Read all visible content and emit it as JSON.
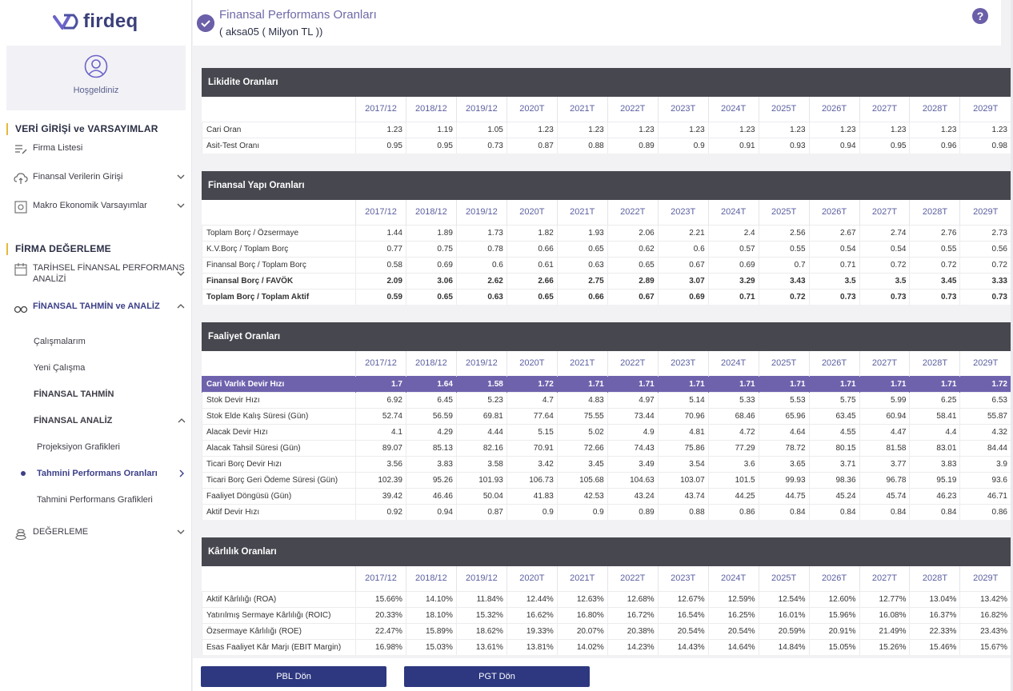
{
  "brand": {
    "name": "firdeq",
    "color": "#3b3f7a"
  },
  "sidebar": {
    "welcome": "Hoşgeldiniz",
    "section1": "VERİ GİRİŞİ ve VARSAYIMLAR",
    "firma_listesi": "Firma Listesi",
    "finansal_verilerin_girisi": "Finansal Verilerin Girişi",
    "makro": "Makro Ekonomik Varsayımlar",
    "section2": "FİRMA DEĞERLEME",
    "tarihsel": "TARİHSEL FİNANSAL PERFORMANS ANALİZİ",
    "tahmin_analiz": "FİNANSAL TAHMİN ve ANALİZ",
    "calismalarim": "Çalışmalarım",
    "yeni_calisma": "Yeni Çalışma",
    "finansal_tahmin": "FİNANSAL TAHMİN",
    "finansal_analiz": "FİNANSAL ANALİZ",
    "projeksiyon": "Projeksiyon Grafikleri",
    "tahmini_oranlar": "Tahmini Performans Oranları",
    "tahmini_grafikler": "Tahmini Performans Grafikleri",
    "degerleme": "DEĞERLEME"
  },
  "header": {
    "title": "Finansal Performans Oranları",
    "subtitle": "( aksa05 ( Milyon TL ))",
    "help": "?"
  },
  "years": [
    "2017/12",
    "2018/12",
    "2019/12",
    "2020T",
    "2021T",
    "2022T",
    "2023T",
    "2024T",
    "2025T",
    "2026T",
    "2027T",
    "2028T",
    "2029T"
  ],
  "panels": [
    {
      "title": "Likidite Oranları",
      "rows": [
        {
          "label": "Cari Oran",
          "v": [
            "1.23",
            "1.19",
            "1.05",
            "1.23",
            "1.23",
            "1.23",
            "1.23",
            "1.23",
            "1.23",
            "1.23",
            "1.23",
            "1.23",
            "1.23"
          ]
        },
        {
          "label": "Asit-Test Oranı",
          "v": [
            "0.95",
            "0.95",
            "0.73",
            "0.87",
            "0.88",
            "0.89",
            "0.9",
            "0.91",
            "0.93",
            "0.94",
            "0.95",
            "0.96",
            "0.98"
          ]
        }
      ]
    },
    {
      "title": "Finansal Yapı Oranları",
      "rows": [
        {
          "label": "Toplam Borç / Özsermaye",
          "v": [
            "1.44",
            "1.89",
            "1.73",
            "1.82",
            "1.93",
            "2.06",
            "2.21",
            "2.4",
            "2.56",
            "2.67",
            "2.74",
            "2.76",
            "2.73"
          ]
        },
        {
          "label": "K.V.Borç / Toplam Borç",
          "v": [
            "0.77",
            "0.75",
            "0.78",
            "0.66",
            "0.65",
            "0.62",
            "0.6",
            "0.57",
            "0.55",
            "0.54",
            "0.54",
            "0.55",
            "0.56"
          ]
        },
        {
          "label": "Finansal Borç / Toplam Borç",
          "v": [
            "0.58",
            "0.69",
            "0.6",
            "0.61",
            "0.63",
            "0.65",
            "0.67",
            "0.69",
            "0.7",
            "0.71",
            "0.72",
            "0.72",
            "0.72"
          ]
        },
        {
          "label": "Finansal Borç / FAVÖK",
          "bold": true,
          "v": [
            "2.09",
            "3.06",
            "2.62",
            "2.66",
            "2.75",
            "2.89",
            "3.07",
            "3.29",
            "3.43",
            "3.5",
            "3.5",
            "3.45",
            "3.33"
          ]
        },
        {
          "label": "Toplam Borç / Toplam Aktif",
          "bold": true,
          "v": [
            "0.59",
            "0.65",
            "0.63",
            "0.65",
            "0.66",
            "0.67",
            "0.69",
            "0.71",
            "0.72",
            "0.73",
            "0.73",
            "0.73",
            "0.73"
          ]
        }
      ]
    },
    {
      "title": "Faaliyet Oranları",
      "rows": [
        {
          "label": "Cari Varlık Devir Hızı",
          "highlight": true,
          "v": [
            "1.7",
            "1.64",
            "1.58",
            "1.72",
            "1.71",
            "1.71",
            "1.71",
            "1.71",
            "1.71",
            "1.71",
            "1.71",
            "1.71",
            "1.72"
          ]
        },
        {
          "label": "Stok Devir Hızı",
          "v": [
            "6.92",
            "6.45",
            "5.23",
            "4.7",
            "4.83",
            "4.97",
            "5.14",
            "5.33",
            "5.53",
            "5.75",
            "5.99",
            "6.25",
            "6.53"
          ]
        },
        {
          "label": "Stok Elde Kalış Süresi (Gün)",
          "v": [
            "52.74",
            "56.59",
            "69.81",
            "77.64",
            "75.55",
            "73.44",
            "70.96",
            "68.46",
            "65.96",
            "63.45",
            "60.94",
            "58.41",
            "55.87"
          ]
        },
        {
          "label": "Alacak Devir Hızı",
          "v": [
            "4.1",
            "4.29",
            "4.44",
            "5.15",
            "5.02",
            "4.9",
            "4.81",
            "4.72",
            "4.64",
            "4.55",
            "4.47",
            "4.4",
            "4.32"
          ]
        },
        {
          "label": "Alacak Tahsil Süresi (Gün)",
          "v": [
            "89.07",
            "85.13",
            "82.16",
            "70.91",
            "72.66",
            "74.43",
            "75.86",
            "77.29",
            "78.72",
            "80.15",
            "81.58",
            "83.01",
            "84.44"
          ]
        },
        {
          "label": "Ticari Borç Devir Hızı",
          "v": [
            "3.56",
            "3.83",
            "3.58",
            "3.42",
            "3.45",
            "3.49",
            "3.54",
            "3.6",
            "3.65",
            "3.71",
            "3.77",
            "3.83",
            "3.9"
          ]
        },
        {
          "label": "Ticari Borç Geri Ödeme Süresi (Gün)",
          "v": [
            "102.39",
            "95.26",
            "101.93",
            "106.73",
            "105.68",
            "104.63",
            "103.07",
            "101.5",
            "99.93",
            "98.36",
            "96.78",
            "95.19",
            "93.6"
          ]
        },
        {
          "label": "Faaliyet Döngüsü (Gün)",
          "v": [
            "39.42",
            "46.46",
            "50.04",
            "41.83",
            "42.53",
            "43.24",
            "43.74",
            "44.25",
            "44.75",
            "45.24",
            "45.74",
            "46.23",
            "46.71"
          ]
        },
        {
          "label": "Aktif Devir Hızı",
          "v": [
            "0.92",
            "0.94",
            "0.87",
            "0.9",
            "0.9",
            "0.89",
            "0.88",
            "0.86",
            "0.84",
            "0.84",
            "0.84",
            "0.84",
            "0.86"
          ]
        }
      ]
    },
    {
      "title": "Kârlılık Oranları",
      "rows": [
        {
          "label": "Aktif Kârlılığı (ROA)",
          "v": [
            "15.66%",
            "14.10%",
            "11.84%",
            "12.44%",
            "12.63%",
            "12.68%",
            "12.67%",
            "12.59%",
            "12.54%",
            "12.60%",
            "12.77%",
            "13.04%",
            "13.42%"
          ]
        },
        {
          "label": "Yatırılmış Sermaye Kârlılığı (ROIC)",
          "v": [
            "20.33%",
            "18.10%",
            "15.32%",
            "16.62%",
            "16.80%",
            "16.72%",
            "16.54%",
            "16.25%",
            "16.01%",
            "15.96%",
            "16.08%",
            "16.37%",
            "16.82%"
          ]
        },
        {
          "label": "Özsermaye Kârlılığı (ROE)",
          "v": [
            "22.47%",
            "15.89%",
            "18.62%",
            "19.33%",
            "20.07%",
            "20.38%",
            "20.54%",
            "20.54%",
            "20.59%",
            "20.91%",
            "21.49%",
            "22.33%",
            "23.43%"
          ]
        },
        {
          "label": "Esas Faaliyet Kâr Marjı (EBIT Margin)",
          "v": [
            "16.98%",
            "15.03%",
            "13.61%",
            "13.81%",
            "14.02%",
            "14.23%",
            "14.43%",
            "14.64%",
            "14.84%",
            "15.05%",
            "15.26%",
            "15.46%",
            "15.67%"
          ]
        }
      ]
    }
  ],
  "buttons": {
    "pbl": "PBL Dön",
    "pgt": "PGT Dön"
  }
}
